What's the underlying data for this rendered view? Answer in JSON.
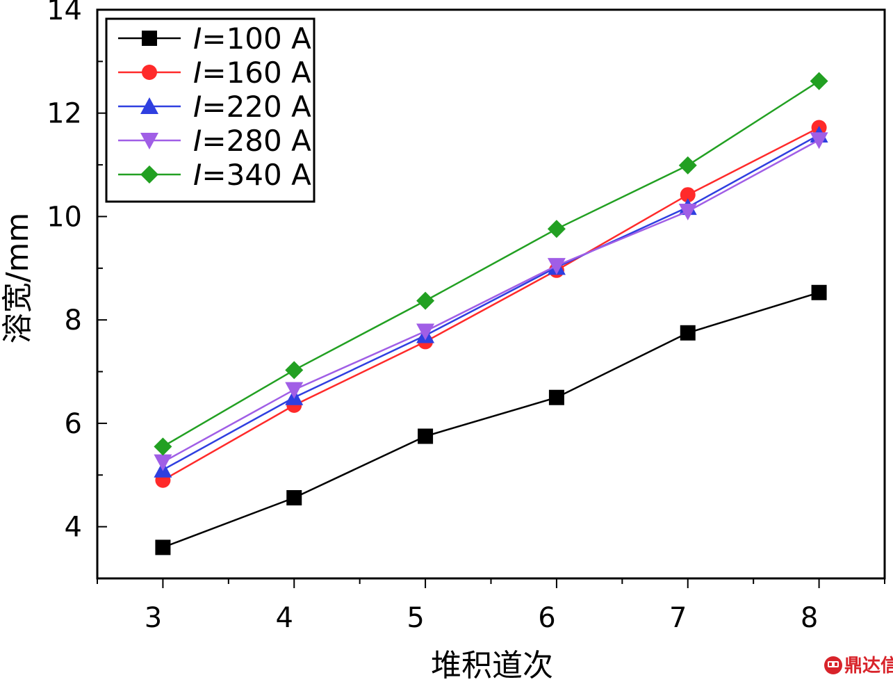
{
  "chart_data": {
    "type": "line",
    "title": "",
    "xlabel": "堆积道次",
    "ylabel": "溶宽/mm",
    "x": [
      3,
      4,
      5,
      6,
      7,
      8
    ],
    "xlim": [
      2.5,
      8.5
    ],
    "ylim": [
      3,
      14
    ],
    "yticks": [
      4,
      6,
      8,
      10,
      12,
      14
    ],
    "grid": false,
    "legend": "top-left",
    "series": [
      {
        "name": "I=100 A",
        "symbol": "I",
        "label_rest": "=100 A",
        "color": "#000000",
        "marker": "square",
        "values": [
          3.6,
          4.56,
          5.75,
          6.5,
          7.75,
          8.53
        ]
      },
      {
        "name": "I=160 A",
        "symbol": "I",
        "label_rest": "=160 A",
        "color": "#ff2a2a",
        "marker": "circle",
        "values": [
          4.9,
          6.35,
          7.58,
          8.96,
          10.42,
          11.72
        ]
      },
      {
        "name": "I=220 A",
        "symbol": "I",
        "label_rest": "=220 A",
        "color": "#2f3fe0",
        "marker": "triangle-up",
        "values": [
          5.1,
          6.5,
          7.7,
          9.02,
          10.18,
          11.58
        ]
      },
      {
        "name": "I=280 A",
        "symbol": "I",
        "label_rest": "=280 A",
        "color": "#a05ee6",
        "marker": "triangle-down",
        "values": [
          5.25,
          6.65,
          7.78,
          9.05,
          10.1,
          11.48
        ]
      },
      {
        "name": "I=340 A",
        "symbol": "I",
        "label_rest": "=340 A",
        "color": "#22a022",
        "marker": "diamond",
        "values": [
          5.55,
          7.03,
          8.37,
          9.76,
          10.99,
          12.62
        ]
      }
    ]
  },
  "watermark": {
    "text": "鼎达信",
    "icon": "dingdaxin-logo-icon",
    "color": "#d8232a"
  }
}
